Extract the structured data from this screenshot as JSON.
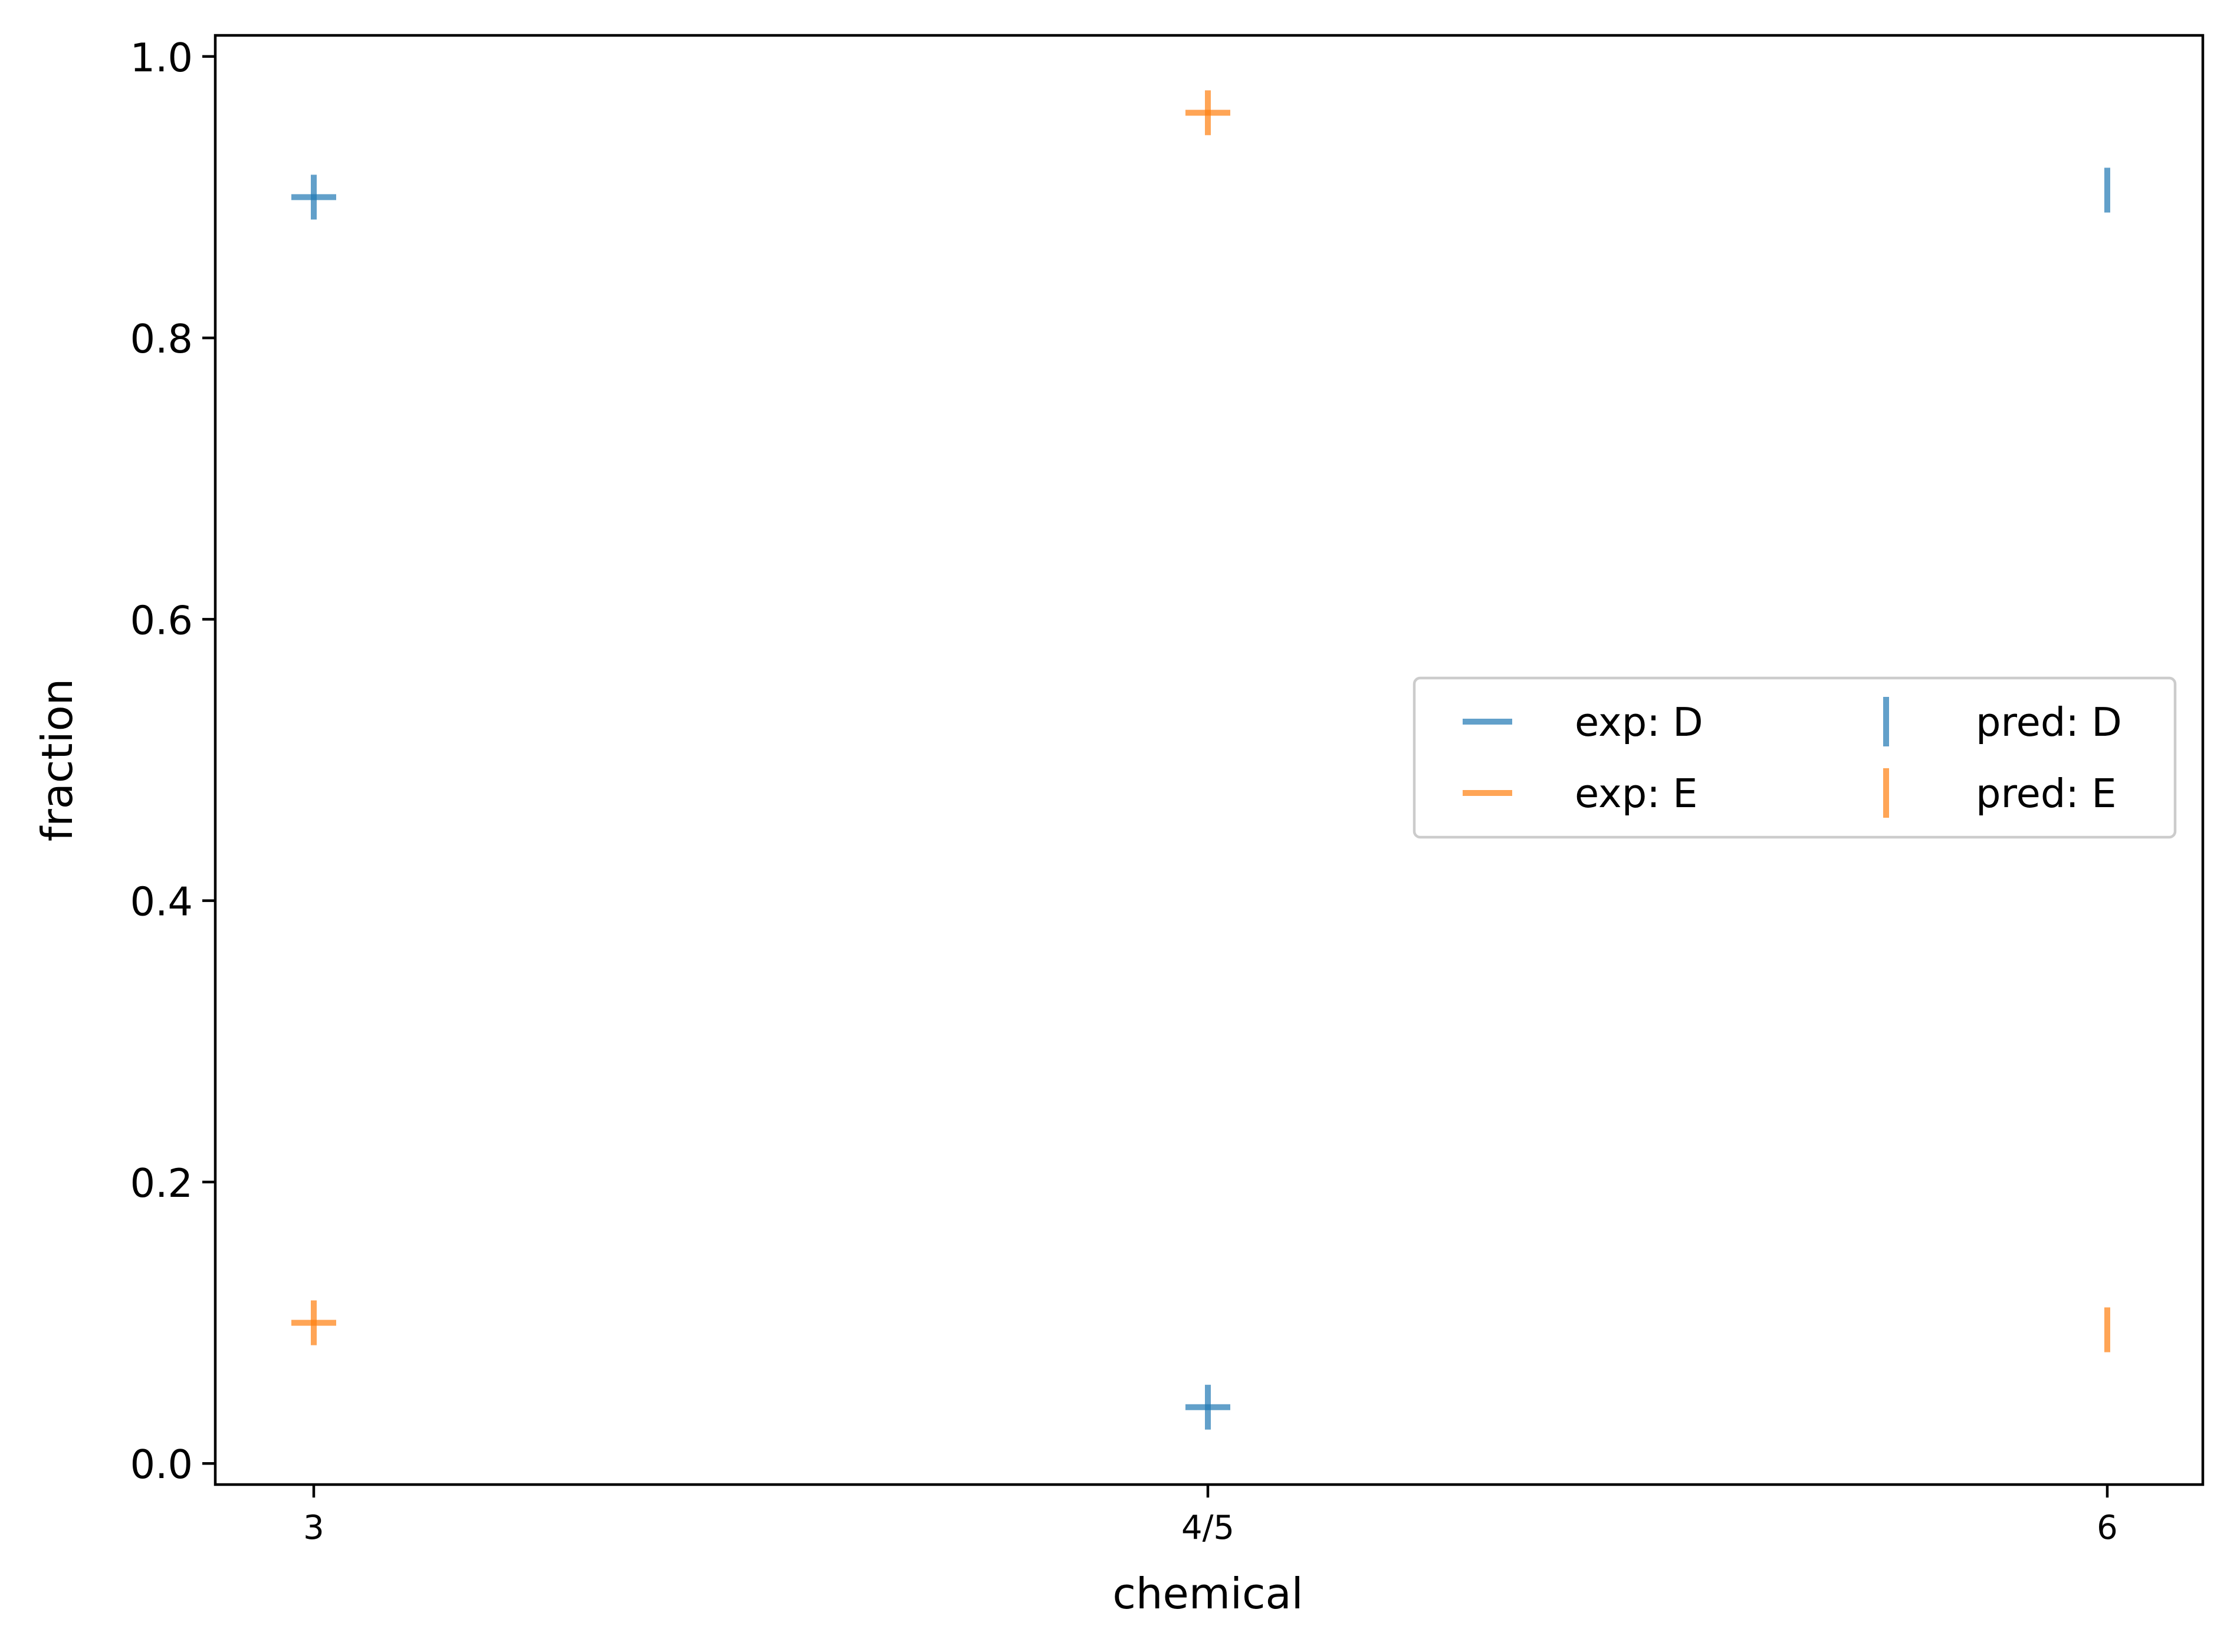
{
  "chart_data": {
    "type": "scatter",
    "title": "",
    "xlabel": "chemical",
    "ylabel": "fraction",
    "categories": [
      "3",
      "4/5",
      "6"
    ],
    "ylim": [
      -0.015,
      1.015
    ],
    "yticks": [
      "0.0",
      "0.2",
      "0.4",
      "0.6",
      "0.8",
      "1.0"
    ],
    "grid": false,
    "legend_position": "center-right",
    "legend_columns": 2,
    "series": [
      {
        "name": "exp: D",
        "marker": "hline",
        "color": "#1f77b4",
        "values": [
          0.9,
          0.04,
          null
        ]
      },
      {
        "name": "exp: E",
        "marker": "hline",
        "color": "#ff7f0e",
        "values": [
          0.1,
          0.96,
          null
        ]
      },
      {
        "name": "pred: D",
        "marker": "vline",
        "color": "#1f77b4",
        "values": [
          0.9,
          0.04,
          0.905
        ]
      },
      {
        "name": "pred: E",
        "marker": "vline",
        "color": "#ff7f0e",
        "values": [
          0.1,
          0.96,
          0.095
        ]
      }
    ]
  }
}
